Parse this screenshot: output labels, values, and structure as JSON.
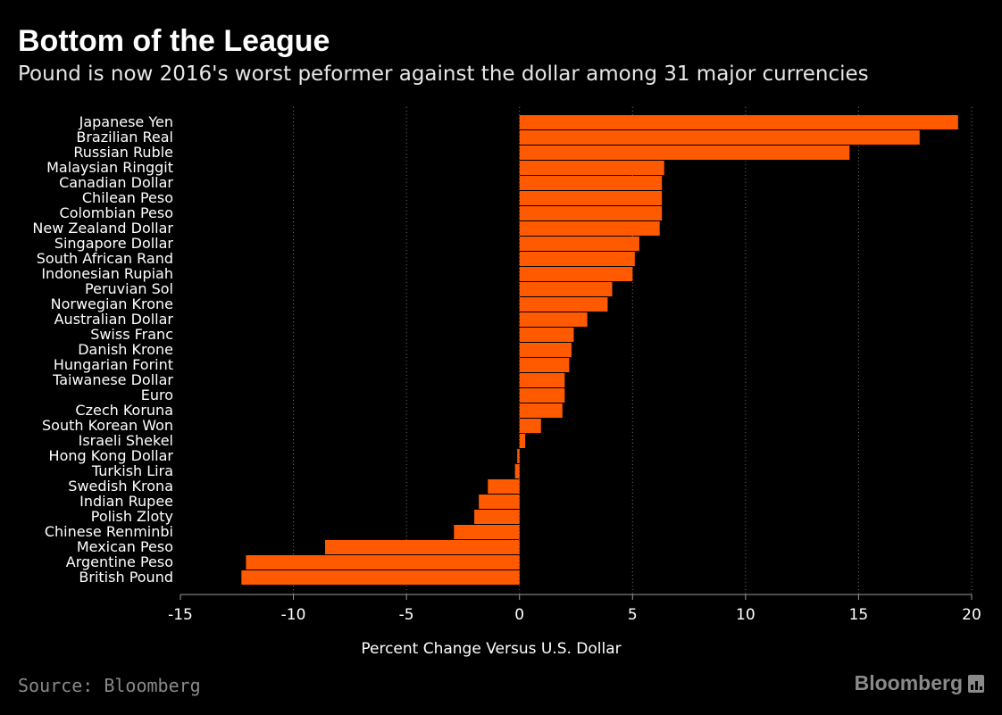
{
  "header": {
    "title": "Bottom of the League",
    "subtitle": "Pound is now 2016's worst peformer against the dollar among 31 major currencies"
  },
  "footer": {
    "source": "Source: Bloomberg",
    "brand": "Bloomberg",
    "brand_icon": "bloomberg-terminal-icon"
  },
  "colors": {
    "background": "#000000",
    "bar": "#ff5a00",
    "grid": "#6e6e6e",
    "axis": "#9a9a9a",
    "text": "#ffffff",
    "muted": "#8a8a8a"
  },
  "chart_data": {
    "type": "bar",
    "orientation": "horizontal",
    "title": "Bottom of the League",
    "subtitle": "Pound is now 2016's worst peformer against the dollar among 31 major currencies",
    "xlabel": "Percent Change Versus U.S. Dollar",
    "ylabel": "",
    "xlim": [
      -15,
      20
    ],
    "xticks": [
      -15,
      -10,
      -5,
      0,
      5,
      10,
      15,
      20
    ],
    "grid": "vertical dotted",
    "legend": "none",
    "categories": [
      "Japanese Yen",
      "Brazilian Real",
      "Russian Ruble",
      "Malaysian Ringgit",
      "Canadian Dollar",
      "Chilean Peso",
      "Colombian Peso",
      "New Zealand Dollar",
      "Singapore Dollar",
      "South African Rand",
      "Indonesian Rupiah",
      "Peruvian Sol",
      "Norwegian Krone",
      "Australian Dollar",
      "Swiss Franc",
      "Danish Krone",
      "Hungarian Forint",
      "Taiwanese Dollar",
      "Euro",
      "Czech Koruna",
      "South Korean Won",
      "Israeli Shekel",
      "Hong Kong Dollar",
      "Turkish Lira",
      "Swedish Krona",
      "Indian Rupee",
      "Polish Zloty",
      "Chinese Renminbi",
      "Mexican Peso",
      "Argentine Peso",
      "British Pound"
    ],
    "values": [
      19.4,
      17.7,
      14.6,
      6.4,
      6.3,
      6.3,
      6.3,
      6.2,
      5.3,
      5.1,
      5.0,
      4.1,
      3.9,
      3.0,
      2.4,
      2.3,
      2.2,
      2.0,
      2.0,
      1.9,
      0.95,
      0.25,
      -0.1,
      -0.2,
      -1.4,
      -1.8,
      -2.0,
      -2.9,
      -8.6,
      -12.1,
      -12.3
    ]
  }
}
